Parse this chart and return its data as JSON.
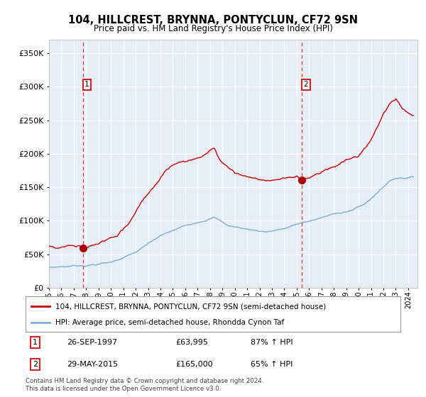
{
  "title": "104, HILLCREST, BRYNNA, PONTYCLUN, CF72 9SN",
  "subtitle": "Price paid vs. HM Land Registry's House Price Index (HPI)",
  "legend_line1": "104, HILLCREST, BRYNNA, PONTYCLUN, CF72 9SN (semi-detached house)",
  "legend_line2": "HPI: Average price, semi-detached house, Rhondda Cynon Taf",
  "annotation1_date": "26-SEP-1997",
  "annotation1_price": "£63,995",
  "annotation1_hpi": "87% ↑ HPI",
  "annotation2_date": "29-MAY-2015",
  "annotation2_price": "£165,000",
  "annotation2_hpi": "65% ↑ HPI",
  "footer": "Contains HM Land Registry data © Crown copyright and database right 2024.\nThis data is licensed under the Open Government Licence v3.0.",
  "sale1_year": 1997.73,
  "sale1_price": 63995,
  "sale2_year": 2015.41,
  "sale2_price": 165000,
  "hpi_color": "#7BAFD4",
  "price_color": "#CC0000",
  "dashed_line_color": "#EE3333",
  "background_color": "#E8EEF7",
  "ylim_max": 370000,
  "ylim_min": 0,
  "xlim_min": 1995.0,
  "xlim_max": 2024.75
}
